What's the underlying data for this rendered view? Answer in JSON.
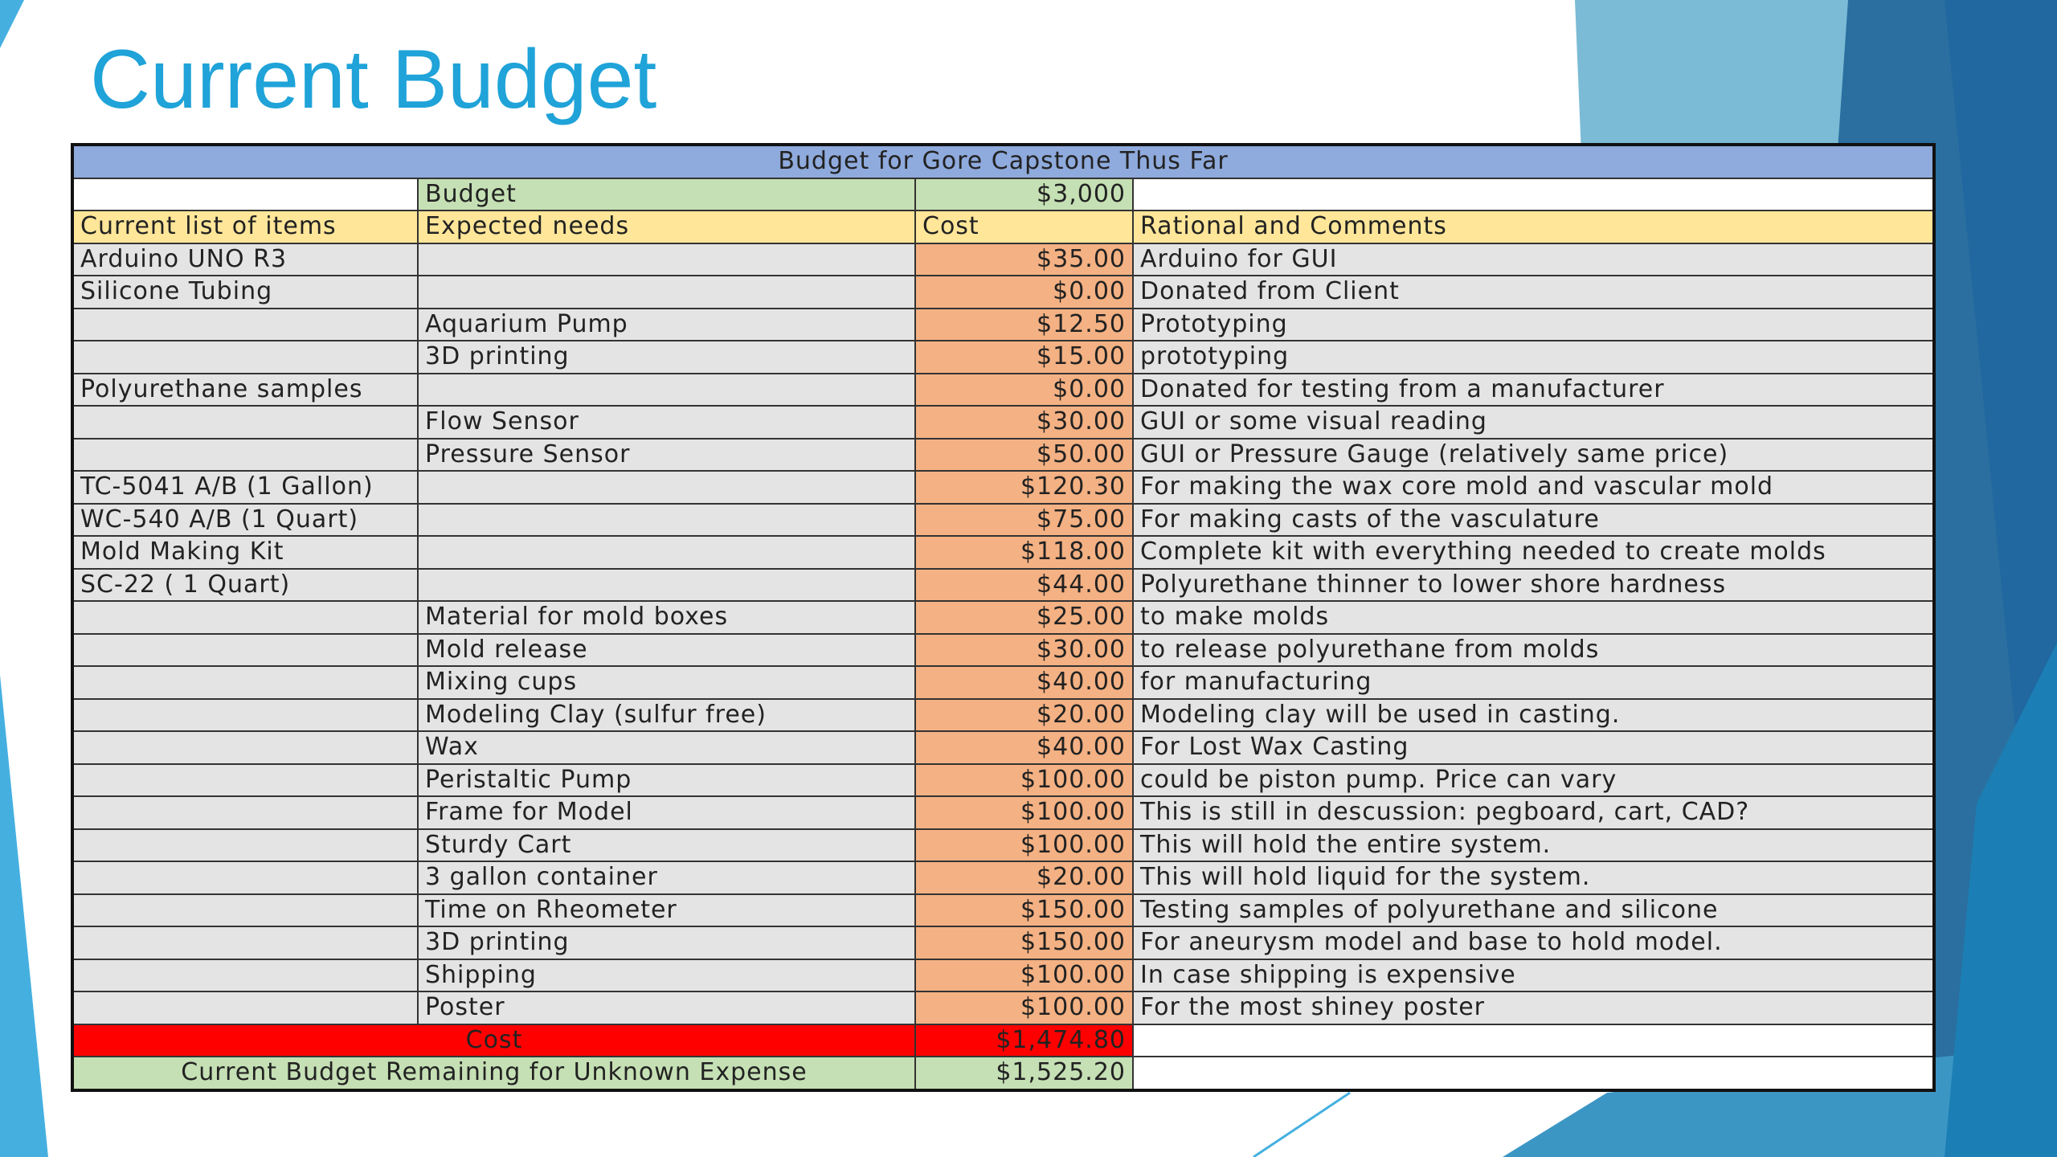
{
  "slide_title": "Current Budget",
  "table": {
    "title": "Budget for Gore Capstone Thus Far",
    "budget_label": "Budget",
    "budget_value": "$3,000",
    "headers": [
      "Current list of items",
      "Expected needs",
      "Cost",
      "Rational and Comments"
    ],
    "rows": [
      {
        "item": "Arduino  UNO R3",
        "need": "",
        "cost": "$35.00",
        "comment": "Arduino for GUI"
      },
      {
        "item": "Silicone Tubing",
        "need": "",
        "cost": "$0.00",
        "comment": "Donated from Client"
      },
      {
        "item": "",
        "need": "Aquarium Pump",
        "cost": "$12.50",
        "comment": "Prototyping"
      },
      {
        "item": "",
        "need": "3D printing",
        "cost": "$15.00",
        "comment": "prototyping"
      },
      {
        "item": "Polyurethane samples",
        "need": "",
        "cost": "$0.00",
        "comment": "Donated for testing from a manufacturer"
      },
      {
        "item": "",
        "need": "Flow Sensor",
        "cost": "$30.00",
        "comment": "GUI or some visual reading"
      },
      {
        "item": "",
        "need": "Pressure Sensor",
        "cost": "$50.00",
        "comment": "GUI or Pressure Gauge (relatively same price)"
      },
      {
        "item": "TC-5041 A/B (1 Gallon)",
        "need": "",
        "cost": "$120.30",
        "comment": "For making the wax core mold and vascular mold"
      },
      {
        "item": "WC-540 A/B (1 Quart)",
        "need": "",
        "cost": "$75.00",
        "comment": "For making casts of the vasculature"
      },
      {
        "item": "Mold Making Kit",
        "need": "",
        "cost": "$118.00",
        "comment": "Complete kit with everything needed to create molds"
      },
      {
        "item": "SC-22 ( 1 Quart)",
        "need": "",
        "cost": "$44.00",
        "comment": "Polyurethane thinner to lower shore hardness"
      },
      {
        "item": "",
        "need": "Material for mold boxes",
        "cost": "$25.00",
        "comment": "to make molds"
      },
      {
        "item": "",
        "need": "Mold release",
        "cost": "$30.00",
        "comment": "to release polyurethane from molds"
      },
      {
        "item": "",
        "need": "Mixing cups",
        "cost": "$40.00",
        "comment": "for manufacturing"
      },
      {
        "item": "",
        "need": "Modeling Clay (sulfur free)",
        "cost": "$20.00",
        "comment": "Modeling clay will be used in casting."
      },
      {
        "item": "",
        "need": "Wax",
        "cost": "$40.00",
        "comment": "For Lost Wax Casting"
      },
      {
        "item": "",
        "need": "Peristaltic Pump",
        "cost": "$100.00",
        "comment": "could be piston pump. Price can vary"
      },
      {
        "item": "",
        "need": "Frame for Model",
        "cost": "$100.00",
        "comment": "This is still in descussion: pegboard, cart, CAD?"
      },
      {
        "item": "",
        "need": "Sturdy Cart",
        "cost": "$100.00",
        "comment": "This will hold the entire system."
      },
      {
        "item": "",
        "need": "3 gallon container",
        "cost": "$20.00",
        "comment": "This will hold liquid for the system."
      },
      {
        "item": "",
        "need": "Time on Rheometer",
        "cost": "$150.00",
        "comment": "Testing samples of polyurethane and silicone"
      },
      {
        "item": "",
        "need": "3D printing",
        "cost": "$150.00",
        "comment": "For aneurysm model and base to hold model."
      },
      {
        "item": "",
        "need": "Shipping",
        "cost": "$100.00",
        "comment": "In case shipping is expensive"
      },
      {
        "item": "",
        "need": "Poster",
        "cost": "$100.00",
        "comment": "For the most shiney poster"
      }
    ],
    "total_label": "Cost",
    "total_value": "$1,474.80",
    "remaining_label": "Current Budget Remaining for Unknown Expense",
    "remaining_value": "$1,525.20"
  },
  "colors": {
    "title": "#1fa3d8",
    "header_blue": "#8faadc",
    "budget_green": "#c5e0b4",
    "column_header_yellow": "#ffe699",
    "cost_orange": "#f4b183",
    "total_red": "#ff0000"
  }
}
